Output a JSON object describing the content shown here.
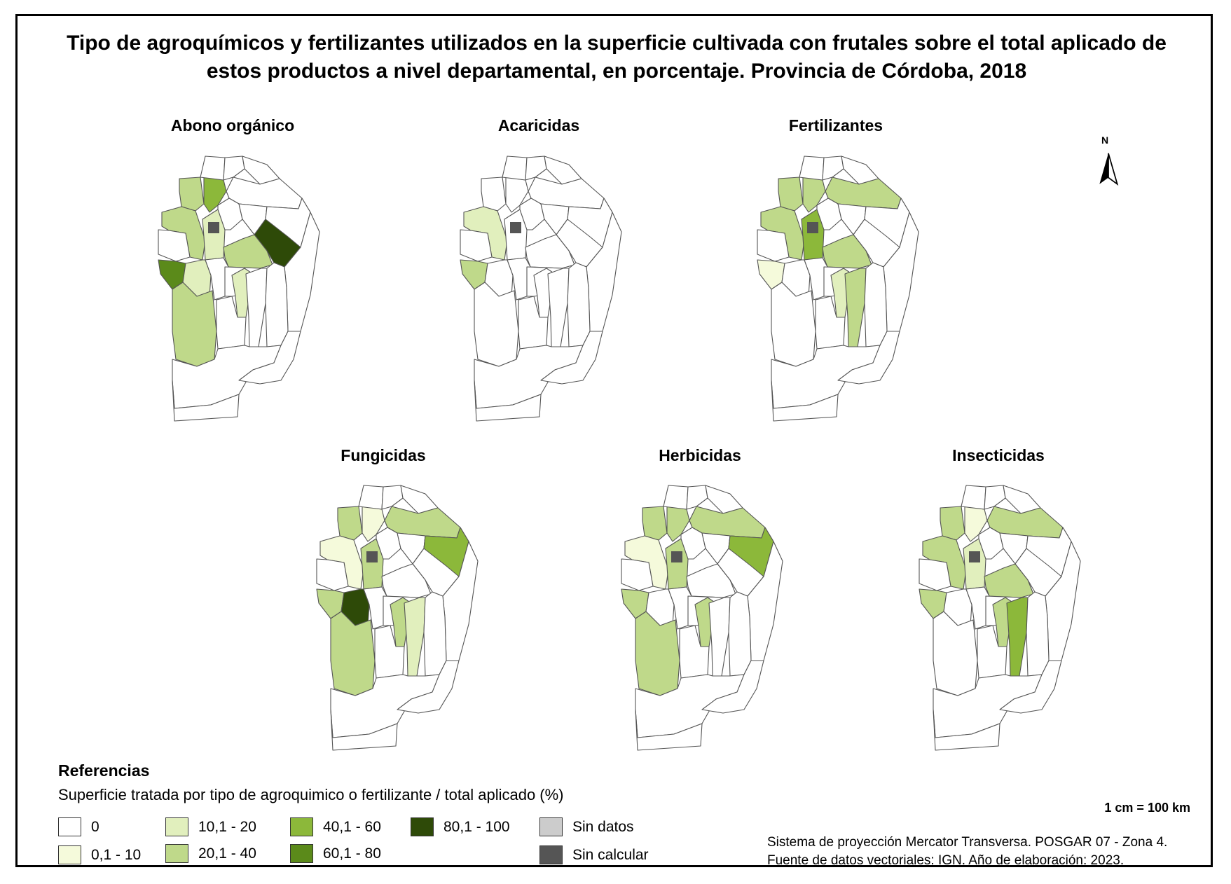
{
  "title": "Tipo de agroquímicos y fertilizantes utilizados en la superficie cultivada con frutales sobre el total aplicado de estos productos a nivel departamental, en porcentaje. Provincia de Córdoba, 2018",
  "colors": {
    "c0": "#ffffff",
    "c1": "#f5fadb",
    "c2": "#e1efbd",
    "c3": "#bfd98a",
    "c4": "#8cb83a",
    "c5": "#5b8a1a",
    "c6": "#2e4a08",
    "sin_datos": "#cccccc",
    "sin_calcular": "#555555"
  },
  "maps": [
    {
      "title": "Abono orgánico",
      "fills": {
        "nw": "c3",
        "nw2": "c4",
        "w1": "c3",
        "centerL": "c2",
        "ne": "c6",
        "eastMid": "c3",
        "swTip": "c5",
        "sw1": "c2",
        "sw2": "c3",
        "se1": "c2"
      }
    },
    {
      "title": "Acaricidas",
      "fills": {
        "w1": "c2",
        "swTip": "c3"
      }
    },
    {
      "title": "Fertilizantes",
      "fills": {
        "nw": "c3",
        "nw2": "c3",
        "w1": "c3",
        "northBand": "c3",
        "centerL": "c4",
        "eastMid": "c3",
        "swTip": "c1",
        "se1": "c2",
        "se2": "c3"
      }
    },
    {
      "title": "Fungicidas",
      "fills": {
        "nw": "c3",
        "nw2": "c1",
        "w1": "c1",
        "northBand": "c3",
        "centerL": "c3",
        "ne2": "c4",
        "swTip": "c3",
        "sw1": "c6",
        "sw2": "c3",
        "se1": "c3",
        "se2": "c2"
      }
    },
    {
      "title": "Herbicidas",
      "fills": {
        "nw": "c3",
        "nw2": "c3",
        "w1": "c1",
        "northBand": "c3",
        "centerL": "c3",
        "ne2": "c4",
        "swTip": "c3",
        "sw2": "c3",
        "se1": "c3"
      }
    },
    {
      "title": "Insecticidas",
      "fills": {
        "nw": "c3",
        "nw2": "c1",
        "w1": "c3",
        "northBand": "c3",
        "centerL": "c2",
        "eastMid": "c3",
        "swTip": "c3",
        "se1": "c3",
        "se2": "c4"
      }
    }
  ],
  "north_label": "N",
  "legend": {
    "title": "Referencias",
    "subtitle": "Superficie tratada por tipo de agroquimico o fertilizante / total aplicado (%)",
    "items": [
      {
        "label": "0",
        "color": "c0"
      },
      {
        "label": "0,1 - 10",
        "color": "c1"
      },
      {
        "label": "10,1 - 20",
        "color": "c2"
      },
      {
        "label": "20,1 - 40",
        "color": "c3"
      },
      {
        "label": "40,1 - 60",
        "color": "c4"
      },
      {
        "label": "60,1 - 80",
        "color": "c5"
      },
      {
        "label": "80,1 - 100",
        "color": "c6"
      },
      {
        "label": "Sin datos",
        "color": "sin_datos"
      },
      {
        "label": "Sin calcular",
        "color": "sin_calcular"
      }
    ]
  },
  "scale": "1 cm = 100 km",
  "credits": {
    "line1": "Sistema de proyección Mercator Transversa. POSGAR 07 - Zona 4.",
    "line2": "Fuente de datos vectoriales: IGN. Año de elaboración: 2023."
  }
}
